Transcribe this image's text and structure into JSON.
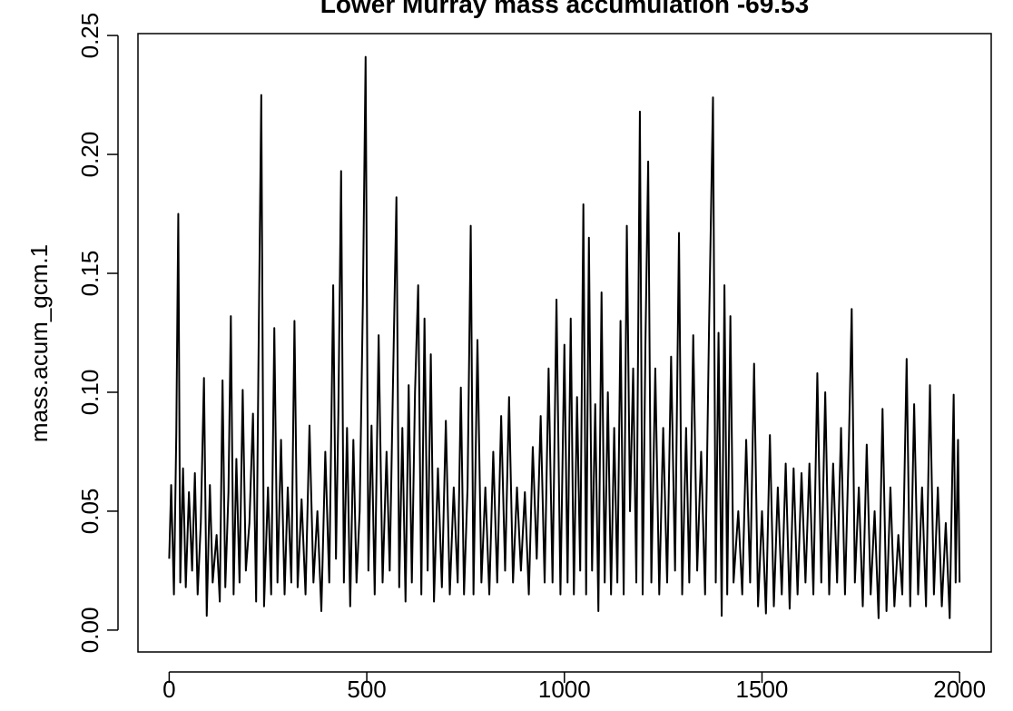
{
  "chart_data": {
    "type": "line",
    "title": "Lower Murray mass accumulation -69.53",
    "y_label": "mass.acum_gcm.1",
    "color": "#000000",
    "xlim": [
      -79,
      2080
    ],
    "xticks": [
      0,
      500,
      1000,
      1500,
      2000
    ],
    "ylim": [
      -0.0092,
      0.2508
    ],
    "yticks": [
      {
        "value": 0,
        "label": "0.00"
      },
      0.05,
      {
        "value": 0.1,
        "label": "0.10"
      },
      0.15,
      {
        "value": 0.2,
        "label": "0.20"
      },
      0.25
    ],
    "x": [
      0,
      5,
      12,
      18,
      23,
      28,
      35,
      42,
      50,
      58,
      65,
      72,
      80,
      88,
      95,
      103,
      110,
      120,
      128,
      135,
      142,
      150,
      156,
      163,
      170,
      178,
      186,
      194,
      203,
      212,
      220,
      227,
      233,
      240,
      250,
      258,
      266,
      274,
      283,
      292,
      300,
      309,
      317,
      325,
      335,
      345,
      355,
      365,
      375,
      385,
      395,
      405,
      415,
      422,
      428,
      435,
      442,
      450,
      458,
      466,
      474,
      482,
      490,
      497,
      504,
      512,
      520,
      530,
      540,
      550,
      558,
      566,
      575,
      582,
      590,
      598,
      606,
      614,
      622,
      630,
      638,
      646,
      654,
      662,
      670,
      680,
      690,
      700,
      710,
      720,
      730,
      738,
      746,
      755,
      763,
      770,
      780,
      790,
      800,
      810,
      820,
      830,
      840,
      850,
      860,
      870,
      880,
      890,
      900,
      910,
      920,
      930,
      940,
      950,
      960,
      970,
      980,
      990,
      1000,
      1008,
      1016,
      1024,
      1032,
      1040,
      1048,
      1055,
      1062,
      1070,
      1078,
      1086,
      1094,
      1102,
      1110,
      1118,
      1126,
      1134,
      1142,
      1150,
      1158,
      1166,
      1174,
      1182,
      1191,
      1198,
      1205,
      1212,
      1220,
      1230,
      1240,
      1250,
      1260,
      1270,
      1280,
      1290,
      1298,
      1308,
      1316,
      1326,
      1336,
      1346,
      1356,
      1366,
      1376,
      1383,
      1390,
      1398,
      1405,
      1412,
      1420,
      1428,
      1440,
      1450,
      1460,
      1470,
      1480,
      1490,
      1500,
      1510,
      1520,
      1530,
      1540,
      1550,
      1560,
      1570,
      1580,
      1590,
      1600,
      1610,
      1620,
      1630,
      1640,
      1650,
      1660,
      1670,
      1680,
      1690,
      1700,
      1710,
      1720,
      1727,
      1735,
      1745,
      1755,
      1765,
      1775,
      1785,
      1795,
      1805,
      1815,
      1825,
      1835,
      1845,
      1855,
      1866,
      1875,
      1885,
      1895,
      1905,
      1915,
      1925,
      1935,
      1945,
      1955,
      1965,
      1975,
      1985,
      1990,
      1996,
      2000
    ],
    "values": [
      0.03,
      0.061,
      0.015,
      0.083,
      0.175,
      0.02,
      0.068,
      0.018,
      0.058,
      0.025,
      0.066,
      0.015,
      0.045,
      0.106,
      0.006,
      0.061,
      0.02,
      0.04,
      0.012,
      0.105,
      0.018,
      0.058,
      0.132,
      0.015,
      0.072,
      0.02,
      0.101,
      0.025,
      0.045,
      0.091,
      0.012,
      0.131,
      0.225,
      0.01,
      0.06,
      0.015,
      0.127,
      0.02,
      0.08,
      0.015,
      0.06,
      0.02,
      0.13,
      0.018,
      0.055,
      0.015,
      0.086,
      0.02,
      0.05,
      0.008,
      0.075,
      0.02,
      0.145,
      0.03,
      0.091,
      0.193,
      0.02,
      0.085,
      0.01,
      0.08,
      0.02,
      0.05,
      0.137,
      0.241,
      0.025,
      0.086,
      0.015,
      0.124,
      0.02,
      0.075,
      0.025,
      0.101,
      0.182,
      0.018,
      0.085,
      0.012,
      0.103,
      0.02,
      0.1,
      0.145,
      0.015,
      0.131,
      0.025,
      0.116,
      0.012,
      0.068,
      0.018,
      0.088,
      0.015,
      0.06,
      0.02,
      0.102,
      0.015,
      0.06,
      0.17,
      0.015,
      0.122,
      0.02,
      0.06,
      0.015,
      0.075,
      0.02,
      0.09,
      0.025,
      0.098,
      0.02,
      0.06,
      0.025,
      0.058,
      0.015,
      0.077,
      0.03,
      0.09,
      0.02,
      0.11,
      0.02,
      0.139,
      0.015,
      0.12,
      0.02,
      0.131,
      0.015,
      0.098,
      0.025,
      0.179,
      0.015,
      0.165,
      0.025,
      0.095,
      0.008,
      0.142,
      0.02,
      0.1,
      0.015,
      0.085,
      0.02,
      0.13,
      0.015,
      0.17,
      0.05,
      0.11,
      0.02,
      0.218,
      0.015,
      0.12,
      0.197,
      0.02,
      0.11,
      0.015,
      0.085,
      0.02,
      0.115,
      0.025,
      0.167,
      0.015,
      0.085,
      0.02,
      0.124,
      0.025,
      0.075,
      0.015,
      0.127,
      0.224,
      0.02,
      0.125,
      0.006,
      0.145,
      0.015,
      0.132,
      0.02,
      0.05,
      0.015,
      0.08,
      0.02,
      0.112,
      0.01,
      0.05,
      0.007,
      0.082,
      0.01,
      0.06,
      0.015,
      0.07,
      0.009,
      0.068,
      0.015,
      0.066,
      0.02,
      0.07,
      0.015,
      0.108,
      0.02,
      0.1,
      0.015,
      0.07,
      0.02,
      0.085,
      0.015,
      0.08,
      0.135,
      0.02,
      0.06,
      0.01,
      0.078,
      0.015,
      0.05,
      0.005,
      0.093,
      0.008,
      0.06,
      0.01,
      0.04,
      0.015,
      0.114,
      0.01,
      0.095,
      0.015,
      0.06,
      0.01,
      0.103,
      0.015,
      0.06,
      0.01,
      0.045,
      0.005,
      0.099,
      0.02,
      0.08,
      0.02
    ]
  }
}
